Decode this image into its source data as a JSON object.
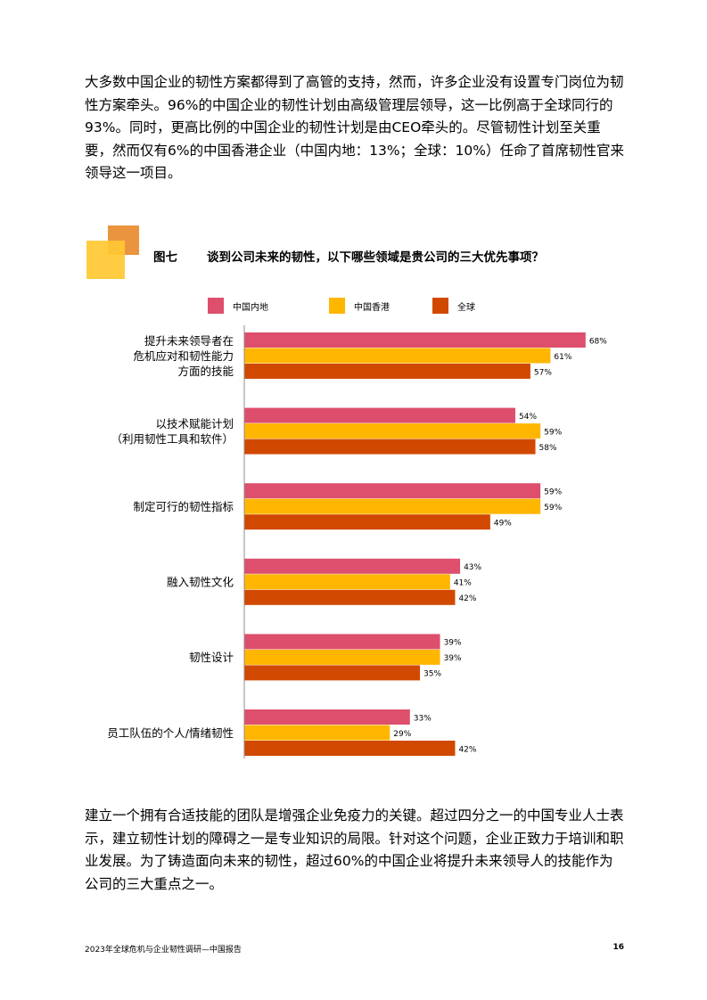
{
  "body": {
    "top_paragraph": "大多数中国企业的韧性方案都得到了高管的支持，然而，许多企业没有设置专门岗位为韧性方案牵头。96%的中国企业的韧性计划由高级管理层领导，这一比例高于全球同行的93%。同时，更高比例的中国企业的韧性计划是由CEO牵头的。尽管韧性计划至关重要，然而仅有6%的中国香港企业（中国内地：13%；全球：10%）任命了首席韧性官来领导这一项目。",
    "bottom_paragraph": "建立一个拥有合适技能的团队是增强企业免疫力的关键。超过四分之一的中国专业人士表示，建立韧性计划的障碍之一是专业知识的局限。针对这个问题，企业正致力于培训和职业发展。为了铸造面向未来的韧性，超过60%的中国企业将提升未来领导人的技能作为公司的三大重点之一。"
  },
  "figure": {
    "label": "图七",
    "title": "谈到公司未来的韧性，以下哪些领域是贵公司的三大优先事项？"
  },
  "chart_data": {
    "type": "bar",
    "orientation": "horizontal",
    "categories": [
      [
        "提升未来领导者在",
        "危机应对和韧性能力",
        "方面的技能"
      ],
      [
        "以技术赋能计划",
        "（利用韧性工具和软件）"
      ],
      [
        "制定可行的韧性指标"
      ],
      [
        "融入韧性文化"
      ],
      [
        "韧性设计"
      ],
      [
        "员工队伍的个人/情绪韧性"
      ]
    ],
    "series": [
      {
        "name": "中国内地",
        "color": "#dd4f6c",
        "values": [
          68,
          54,
          59,
          43,
          39,
          33
        ]
      },
      {
        "name": "中国香港",
        "color": "#ffb600",
        "values": [
          61,
          59,
          59,
          41,
          39,
          29
        ]
      },
      {
        "name": "全球",
        "color": "#d14900",
        "values": [
          57,
          58,
          49,
          42,
          35,
          42
        ]
      }
    ],
    "value_suffix": "%",
    "xlim": [
      0,
      100
    ],
    "grid": false,
    "legend_position": "top",
    "data_labels": true
  },
  "footer": {
    "report_title": "2023年全球危机与企业韧性调研—中国报告",
    "page_number": "16"
  }
}
